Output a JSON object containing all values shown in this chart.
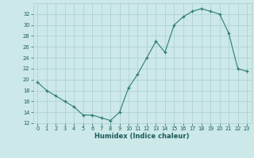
{
  "x": [
    0,
    1,
    2,
    3,
    4,
    5,
    6,
    7,
    8,
    9,
    10,
    11,
    12,
    13,
    14,
    15,
    16,
    17,
    18,
    19,
    20,
    21,
    22,
    23
  ],
  "y": [
    19.5,
    18,
    17,
    16,
    15,
    13.5,
    13.5,
    13,
    12.5,
    14,
    18.5,
    21,
    24,
    27,
    25,
    30,
    31.5,
    32.5,
    33,
    32.5,
    32,
    28.5,
    22,
    21.5
  ],
  "xlabel": "Humidex (Indice chaleur)",
  "line_color": "#2e7d6e",
  "marker": "+",
  "bg_color": "#cce8e8",
  "grid_color": "#aacece",
  "text_color": "#1a5a5a",
  "ylim": [
    12,
    34
  ],
  "yticks": [
    12,
    14,
    16,
    18,
    20,
    22,
    24,
    26,
    28,
    30,
    32
  ],
  "xlim": [
    -0.5,
    23.5
  ],
  "xticks": [
    0,
    1,
    2,
    3,
    4,
    5,
    6,
    7,
    8,
    9,
    10,
    11,
    12,
    13,
    14,
    15,
    16,
    17,
    18,
    19,
    20,
    21,
    22,
    23
  ]
}
